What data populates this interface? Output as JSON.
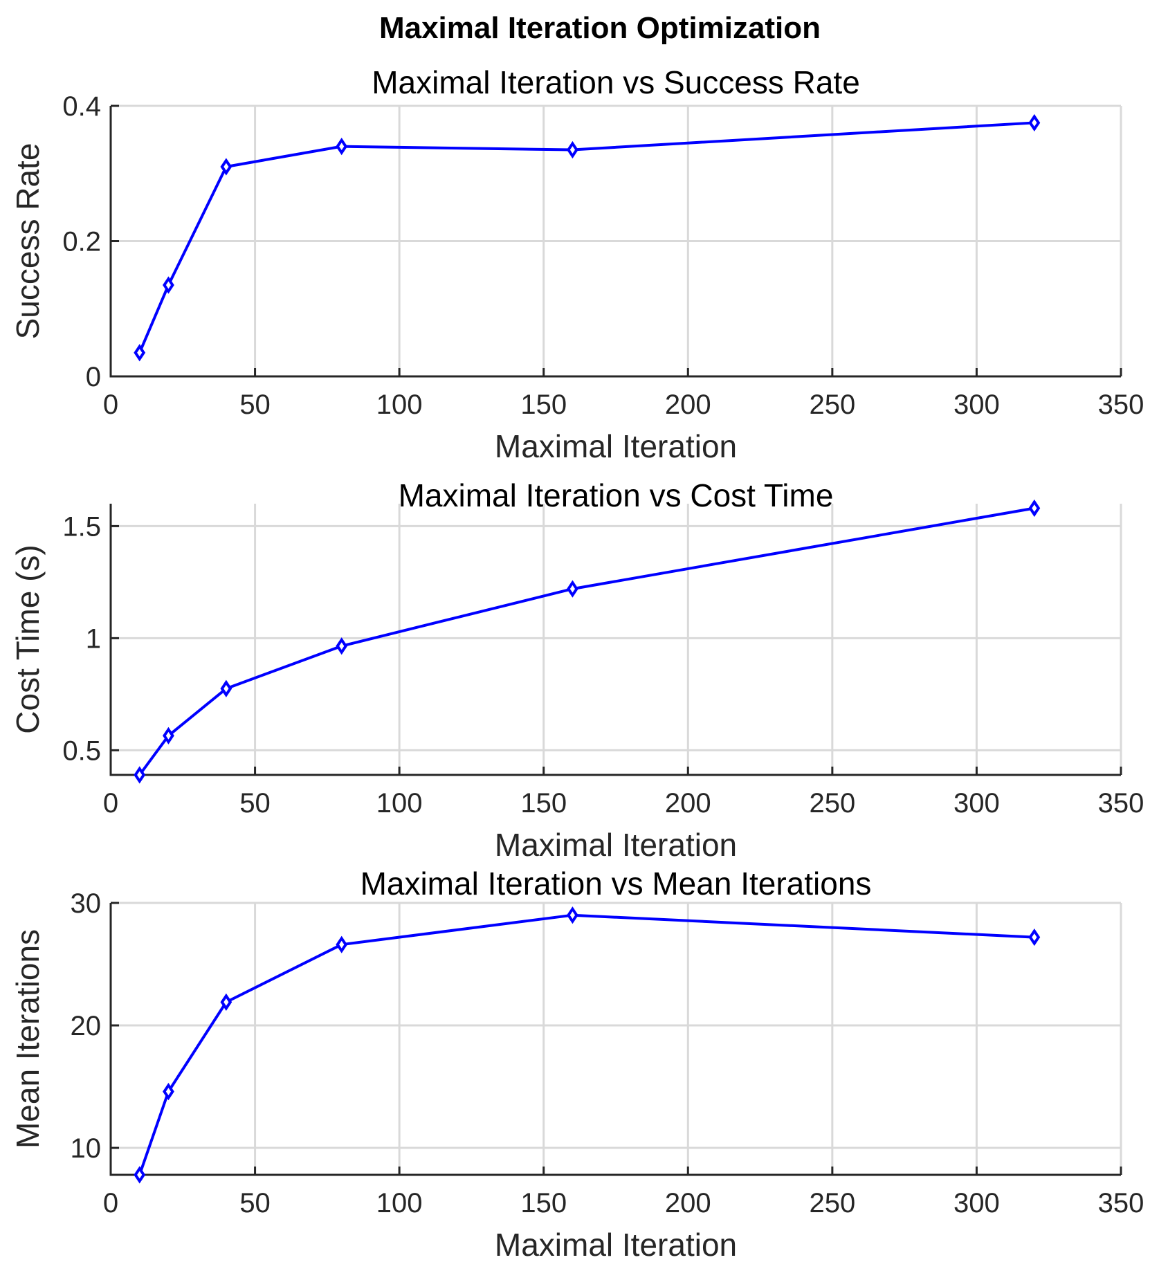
{
  "figure": {
    "suptitle": "Maximal Iteration Optimization"
  },
  "chart_data": [
    {
      "type": "line",
      "title": "Maximal Iteration vs Success Rate",
      "xlabel": "Maximal Iteration",
      "ylabel": "Success Rate",
      "xlim": [
        0,
        350
      ],
      "ylim": [
        0,
        0.4
      ],
      "xticks": [
        0,
        50,
        100,
        150,
        200,
        250,
        300,
        350
      ],
      "yticks": [
        0,
        0.2,
        0.4
      ],
      "xtick_labels": [
        "0",
        "50",
        "100",
        "150",
        "200",
        "250",
        "300",
        "350"
      ],
      "ytick_labels": [
        "0",
        "0.2",
        "0.4"
      ],
      "grid": true,
      "color": "#0000ff",
      "marker": "diamond",
      "x": [
        10,
        20,
        40,
        80,
        160,
        320
      ],
      "y": [
        0.035,
        0.135,
        0.31,
        0.34,
        0.335,
        0.375
      ]
    },
    {
      "type": "line",
      "title": "Maximal Iteration vs Cost Time",
      "xlabel": "Maximal Iteration",
      "ylabel": "Cost Time (s)",
      "xlim": [
        0,
        350
      ],
      "ylim": [
        0.39,
        1.6
      ],
      "xticks": [
        0,
        50,
        100,
        150,
        200,
        250,
        300,
        350
      ],
      "yticks": [
        0.5,
        1,
        1.5
      ],
      "xtick_labels": [
        "0",
        "50",
        "100",
        "150",
        "200",
        "250",
        "300",
        "350"
      ],
      "ytick_labels": [
        "0.5",
        "1",
        "1.5"
      ],
      "grid": true,
      "color": "#0000ff",
      "marker": "diamond",
      "x": [
        10,
        20,
        40,
        80,
        160,
        320
      ],
      "y": [
        0.39,
        0.565,
        0.775,
        0.965,
        1.22,
        1.58
      ]
    },
    {
      "type": "line",
      "title": "Maximal Iteration vs Mean Iterations",
      "xlabel": "Maximal Iteration",
      "ylabel": "Mean Iterations",
      "xlim": [
        0,
        350
      ],
      "ylim": [
        7.8,
        30
      ],
      "xticks": [
        0,
        50,
        100,
        150,
        200,
        250,
        300,
        350
      ],
      "yticks": [
        10,
        20,
        30
      ],
      "xtick_labels": [
        "0",
        "50",
        "100",
        "150",
        "200",
        "250",
        "300",
        "350"
      ],
      "ytick_labels": [
        "10",
        "20",
        "30"
      ],
      "grid": true,
      "color": "#0000ff",
      "marker": "diamond",
      "x": [
        10,
        20,
        40,
        80,
        160,
        320
      ],
      "y": [
        7.8,
        14.6,
        21.9,
        26.6,
        29.0,
        27.2
      ]
    }
  ]
}
